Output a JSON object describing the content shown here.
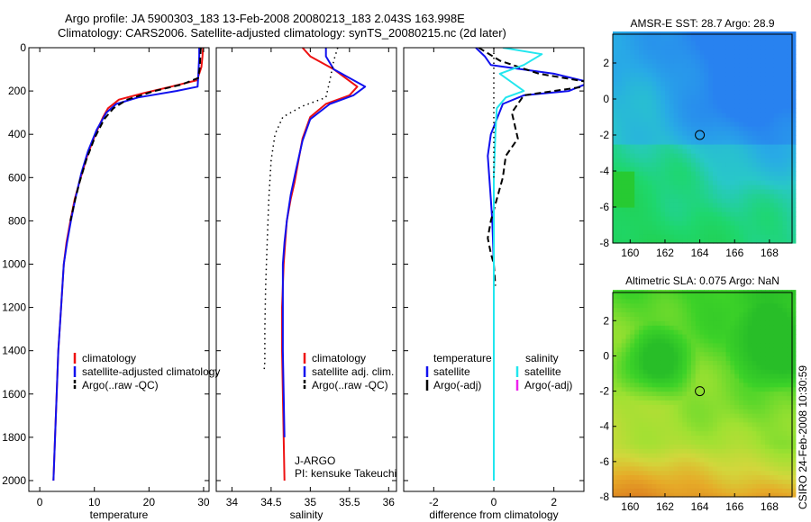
{
  "header": {
    "line1": "Argo profile: JA 5900303_183 13-Feb-2008 20080213_183 2.043S 163.998E",
    "line2": "Climatology: CARS2006. Satellite-adjusted climatology: synTS_20080215.nc (2d later)"
  },
  "side_label": "CSIRO 24-Feb-2008 10:30:59",
  "colors": {
    "climatology": "#ee1111",
    "satellite": "#1111ee",
    "argo": "#000000",
    "sat_salinity": "#22e6ee",
    "argo_adj_salinity": "#ee22ee"
  },
  "chart_data": [
    {
      "type": "line",
      "xlabel": "temperature",
      "ylim": [
        2050,
        0
      ],
      "xlim": [
        -2,
        31
      ],
      "xticks": [
        0,
        10,
        20,
        30
      ],
      "yticks": [
        0,
        200,
        400,
        600,
        800,
        1000,
        1200,
        1400,
        1600,
        1800,
        2000
      ],
      "legend": [
        "climatology",
        "satellite-adjusted climatology",
        "Argo(..raw -QC)"
      ],
      "series": [
        {
          "role": "climatology",
          "style": "solid",
          "x": [
            29.9,
            29.8,
            29.6,
            28.8,
            24.0,
            19.0,
            14.5,
            12.5,
            11.6,
            10.2,
            8.7,
            7.5,
            6.4,
            5.6,
            4.9,
            4.4,
            3.9,
            3.4,
            3.1,
            2.8,
            2.5
          ],
          "y": [
            0,
            40,
            90,
            150,
            180,
            210,
            240,
            280,
            320,
            400,
            500,
            600,
            700,
            800,
            900,
            1000,
            1200,
            1400,
            1600,
            1800,
            2000
          ]
        },
        {
          "role": "satellite",
          "style": "solid",
          "x": [
            29.2,
            29.2,
            29.1,
            29.0,
            28.9,
            25.0,
            18.0,
            14.0,
            12.2,
            10.4,
            8.8,
            7.6,
            6.5,
            5.7,
            5.0,
            4.4,
            3.9,
            3.4,
            3.1,
            2.8,
            2.5
          ],
          "y": [
            0,
            40,
            90,
            140,
            180,
            200,
            230,
            260,
            300,
            380,
            480,
            580,
            700,
            800,
            900,
            1000,
            1200,
            1400,
            1600,
            1800,
            2000
          ]
        },
        {
          "role": "argo",
          "style": "dashed",
          "x": [
            29.5,
            29.4,
            29.3,
            29.0,
            26.0,
            21.0,
            16.0,
            13.5,
            11.8,
            10.0,
            8.5,
            7.3,
            6.5,
            5.6
          ],
          "y": [
            0,
            40,
            90,
            140,
            170,
            200,
            240,
            280,
            330,
            420,
            520,
            620,
            700,
            800
          ]
        }
      ]
    },
    {
      "type": "line",
      "xlabel": "salinity",
      "ylim": [
        2050,
        0
      ],
      "xlim": [
        33.8,
        36.1
      ],
      "xticks": [
        34,
        34.5,
        35,
        35.5,
        36
      ],
      "legend": [
        "climatology",
        "satellite adj. clim.",
        "Argo(..raw -QC)"
      ],
      "annotation": [
        "J-ARGO",
        "PI: kensuke Takeuchi"
      ],
      "series": [
        {
          "role": "climatology",
          "style": "solid",
          "x": [
            34.9,
            35.0,
            35.3,
            35.6,
            35.5,
            35.2,
            35.0,
            34.9,
            34.85,
            34.8,
            34.75,
            34.7,
            34.68,
            34.66,
            34.64,
            34.64,
            34.65,
            34.66,
            34.67
          ],
          "y": [
            0,
            40,
            100,
            180,
            220,
            260,
            320,
            420,
            520,
            620,
            700,
            800,
            900,
            1000,
            1200,
            1400,
            1600,
            1800,
            2000
          ]
        },
        {
          "role": "satellite",
          "style": "solid",
          "x": [
            35.2,
            35.2,
            35.3,
            35.7,
            35.55,
            35.25,
            35.0,
            34.9,
            34.82,
            34.75,
            34.7,
            34.67,
            34.65,
            34.65,
            34.65,
            34.66,
            34.67
          ],
          "y": [
            0,
            40,
            100,
            180,
            220,
            260,
            330,
            430,
            560,
            680,
            800,
            900,
            1000,
            1200,
            1400,
            1600,
            1800
          ]
        },
        {
          "role": "argo",
          "style": "dotted",
          "x": [
            35.35,
            35.3,
            35.25,
            35.2,
            34.9,
            34.65,
            34.55,
            34.5,
            34.47,
            34.45,
            34.43,
            34.42,
            34.42,
            34.41
          ],
          "y": [
            0,
            60,
            150,
            230,
            270,
            320,
            400,
            520,
            700,
            900,
            1100,
            1300,
            1450,
            1500
          ]
        }
      ]
    },
    {
      "type": "line",
      "xlabel": "difference from climatology",
      "ylim": [
        2050,
        0
      ],
      "xlim": [
        -3,
        3
      ],
      "xticks": [
        -2,
        0,
        2
      ],
      "legend_temperature": [
        "temperature",
        "satellite",
        "Argo(-adj)"
      ],
      "legend_salinity": [
        "salinity",
        "satellite",
        "Argo(-adj)"
      ],
      "series": [
        {
          "role": "temp-satellite",
          "style": "solid",
          "x": [
            -0.6,
            -0.3,
            -0.1,
            2.0,
            3.2,
            2.5,
            1.0,
            0.3,
            -0.1,
            -0.2,
            -0.15,
            -0.1,
            -0.05,
            0,
            0,
            0,
            0
          ],
          "y": [
            0,
            40,
            80,
            120,
            160,
            200,
            220,
            260,
            400,
            500,
            600,
            700,
            800,
            1000,
            1400,
            1800,
            2000
          ]
        },
        {
          "role": "temp-argo",
          "style": "dashed",
          "x": [
            -0.5,
            0.2,
            1.5,
            3.2,
            3.0,
            2.0,
            1.0,
            0.6,
            0.8,
            0.4,
            0.3,
            0.1,
            0,
            -0.1,
            -0.2,
            -0.1,
            0,
            0.05
          ],
          "y": [
            0,
            60,
            120,
            160,
            180,
            200,
            220,
            300,
            420,
            500,
            600,
            700,
            750,
            800,
            880,
            950,
            1000,
            1100
          ]
        },
        {
          "role": "sal-satellite",
          "style": "solid",
          "x": [
            0.3,
            1.6,
            1.0,
            0.2,
            0.6,
            1.0,
            0.4,
            0.1,
            0.05,
            0,
            0,
            0,
            0,
            0
          ],
          "y": [
            0,
            30,
            80,
            120,
            160,
            200,
            230,
            280,
            400,
            600,
            900,
            1200,
            1600,
            2000
          ]
        },
        {
          "role": "zero-line",
          "style": "dotted",
          "x": [
            0,
            0
          ],
          "y": [
            0,
            600
          ]
        }
      ]
    },
    {
      "type": "heatmap",
      "title": "AMSR-E SST: 28.7 Argo: 28.9",
      "xlim": [
        159,
        169.3
      ],
      "ylim": [
        -8,
        3.6
      ],
      "xticks": [
        160,
        162,
        164,
        166,
        168
      ],
      "yticks": [
        -8,
        -6,
        -4,
        -2,
        0,
        2
      ],
      "marker": {
        "x": 164,
        "y": -2
      }
    },
    {
      "type": "heatmap",
      "title": "Altimetric SLA: 0.075 Argo: NaN",
      "xlim": [
        159,
        169.3
      ],
      "ylim": [
        -8,
        3.6
      ],
      "xticks": [
        160,
        162,
        164,
        166,
        168
      ],
      "yticks": [
        -8,
        -6,
        -4,
        -2,
        0,
        2
      ],
      "marker": {
        "x": 164,
        "y": -2
      }
    }
  ]
}
